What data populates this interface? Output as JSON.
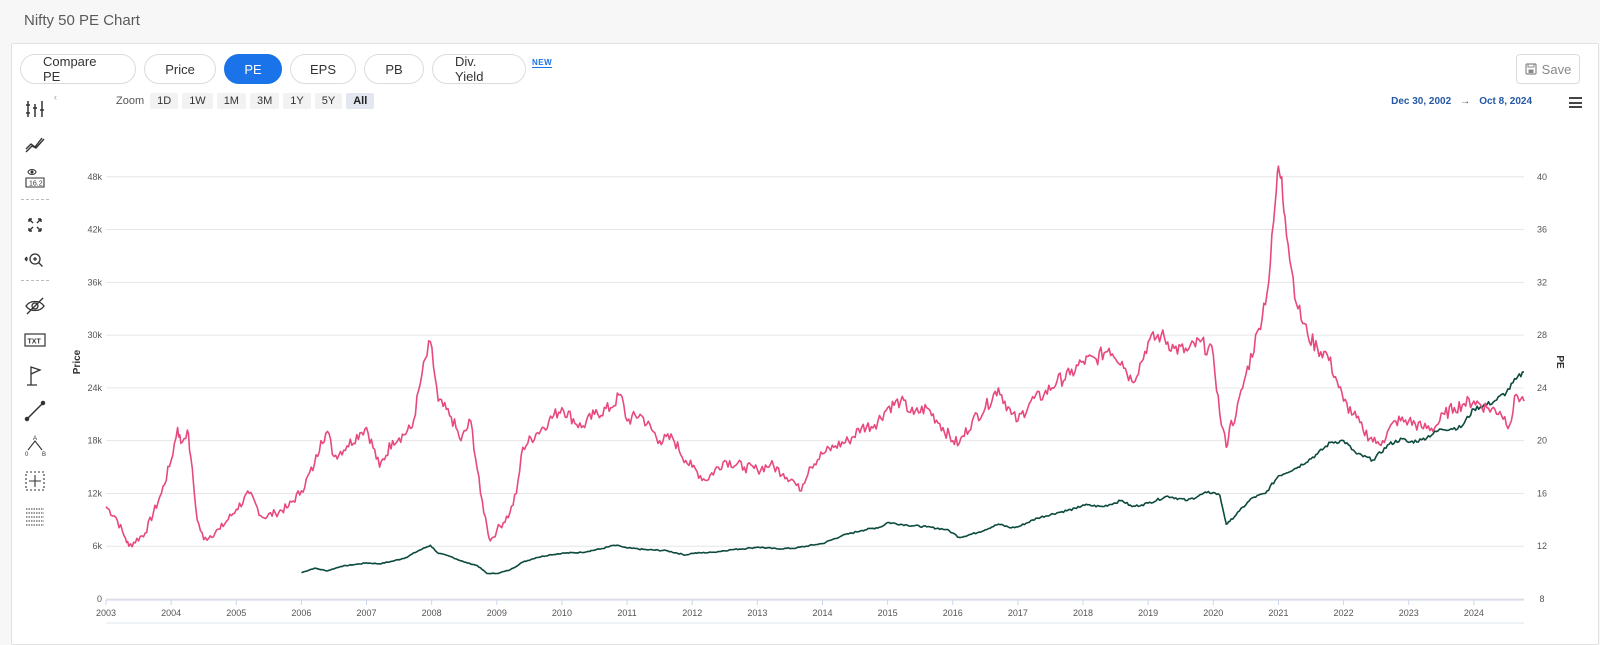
{
  "page": {
    "title": "Nifty 50 PE Chart"
  },
  "tabs": [
    "Compare PE",
    "Price",
    "PE",
    "EPS",
    "PB",
    "Div. Yield"
  ],
  "active_tab": "PE",
  "new_badge": "NEW",
  "save_label": "Save",
  "zoom": {
    "label": "Zoom",
    "options": [
      "1D",
      "1W",
      "1M",
      "3M",
      "1Y",
      "5Y",
      "All"
    ],
    "active": "All"
  },
  "range": {
    "from": "Dec 30, 2002",
    "arrow": "→",
    "to": "Oct 8, 2024"
  },
  "toolbar_icons": [
    "indicators-icon",
    "compare-line-icon",
    "label-value-icon",
    "fullscreen-icon",
    "zoom-pan-icon",
    "hide-icon",
    "text-annotation-icon",
    "flag-icon",
    "line-tool-icon",
    "measure-ab-icon",
    "crosshair-icon",
    "grid-table-icon"
  ],
  "colors": {
    "pe_series": "#e8497d",
    "price_series": "#0c4a3e",
    "accent": "#1a73e8",
    "range_text": "#2458a6"
  },
  "chart_data": {
    "type": "line",
    "title": "",
    "x_ticks": [
      "2003",
      "2004",
      "2005",
      "2006",
      "2007",
      "2008",
      "2009",
      "2010",
      "2011",
      "2012",
      "2013",
      "2014",
      "2015",
      "2016",
      "2017",
      "2018",
      "2019",
      "2020",
      "2021",
      "2022",
      "2023",
      "2024"
    ],
    "xlim": [
      2003.0,
      2024.77
    ],
    "y_left": {
      "label": "Price",
      "ticks": [
        "0",
        "6k",
        "12k",
        "18k",
        "24k",
        "30k",
        "36k",
        "42k",
        "48k"
      ],
      "ylim": [
        0,
        54000
      ]
    },
    "y_right": {
      "label": "PE",
      "ticks": [
        "8",
        "12",
        "16",
        "20",
        "24",
        "28",
        "32",
        "36",
        "40"
      ],
      "ylim": [
        8,
        44
      ]
    },
    "grid": true,
    "series": [
      {
        "axis": "right",
        "x": [
          2003.0,
          2003.15,
          2003.3,
          2003.35,
          2003.6,
          2003.85,
          2004.0,
          2004.1,
          2004.15,
          2004.25,
          2004.3,
          2004.4,
          2004.5,
          2004.75,
          2005.0,
          2005.2,
          2005.4,
          2005.6,
          2005.8,
          2006.0,
          2006.2,
          2006.3,
          2006.4,
          2006.5,
          2006.7,
          2006.9,
          2007.0,
          2007.2,
          2007.4,
          2007.5,
          2007.7,
          2007.85,
          2007.98,
          2008.1,
          2008.3,
          2008.45,
          2008.6,
          2008.75,
          2008.85,
          2008.9,
          2009.0,
          2009.2,
          2009.3,
          2009.4,
          2009.6,
          2009.8,
          2010.0,
          2010.3,
          2010.5,
          2010.75,
          2010.9,
          2011.0,
          2011.2,
          2011.5,
          2011.7,
          2011.9,
          2012.0,
          2012.2,
          2012.5,
          2012.8,
          2013.0,
          2013.2,
          2013.4,
          2013.55,
          2013.65,
          2013.8,
          2014.0,
          2014.2,
          2014.4,
          2014.6,
          2014.8,
          2015.0,
          2015.2,
          2015.4,
          2015.6,
          2015.8,
          2016.0,
          2016.1,
          2016.3,
          2016.5,
          2016.7,
          2016.9,
          2017.0,
          2017.2,
          2017.4,
          2017.6,
          2017.8,
          2018.0,
          2018.2,
          2018.4,
          2018.6,
          2018.75,
          2018.9,
          2019.0,
          2019.2,
          2019.4,
          2019.6,
          2019.8,
          2020.0,
          2020.1,
          2020.2,
          2020.25,
          2020.35,
          2020.5,
          2020.7,
          2020.85,
          2020.95,
          2021.0,
          2021.05,
          2021.1,
          2021.2,
          2021.3,
          2021.45,
          2021.6,
          2021.75,
          2021.9,
          2022.0,
          2022.15,
          2022.3,
          2022.5,
          2022.6,
          2022.8,
          2023.0,
          2023.2,
          2023.4,
          2023.55,
          2023.7,
          2023.85,
          2024.0,
          2024.2,
          2024.4,
          2024.55,
          2024.65,
          2024.77
        ],
        "values": [
          15.0,
          14.2,
          12.6,
          12.0,
          13.0,
          16.0,
          18.5,
          21.0,
          19.8,
          20.8,
          18.8,
          14.0,
          12.5,
          13.3,
          14.8,
          16.0,
          14.2,
          14.5,
          15.0,
          16.2,
          18.2,
          20.0,
          20.7,
          18.8,
          19.6,
          20.6,
          21.0,
          18.0,
          20.0,
          20.2,
          21.0,
          25.0,
          27.5,
          23.0,
          21.8,
          20.0,
          21.5,
          16.0,
          13.5,
          12.4,
          13.2,
          14.5,
          16.0,
          19.5,
          20.5,
          21.5,
          22.5,
          21.0,
          22.0,
          22.5,
          23.5,
          21.5,
          22.0,
          20.0,
          20.2,
          18.5,
          18.0,
          17.0,
          18.5,
          18.0,
          17.8,
          18.2,
          17.5,
          17.0,
          16.2,
          18.0,
          19.0,
          19.6,
          20.0,
          21.0,
          21.2,
          22.5,
          23.0,
          22.0,
          22.5,
          21.3,
          20.0,
          19.8,
          21.5,
          22.5,
          24.0,
          22.0,
          21.5,
          23.0,
          23.5,
          24.5,
          25.0,
          26.0,
          26.2,
          27.0,
          26.0,
          24.5,
          26.0,
          27.5,
          28.0,
          27.0,
          26.8,
          27.5,
          26.5,
          22.0,
          19.5,
          21.0,
          22.0,
          25.0,
          28.5,
          32.0,
          38.0,
          40.8,
          40.0,
          37.0,
          33.0,
          30.0,
          28.0,
          27.0,
          26.5,
          24.5,
          23.0,
          22.0,
          20.8,
          19.8,
          20.0,
          21.5,
          21.5,
          21.0,
          21.0,
          22.0,
          22.5,
          22.8,
          23.0,
          22.5,
          22.2,
          21.2,
          23.5,
          23.0
        ]
      },
      {
        "axis": "left",
        "x": [
          2006.0,
          2006.2,
          2006.4,
          2006.6,
          2006.8,
          2007.0,
          2007.2,
          2007.4,
          2007.6,
          2007.8,
          2007.98,
          2008.1,
          2008.3,
          2008.5,
          2008.7,
          2008.85,
          2009.0,
          2009.2,
          2009.4,
          2009.6,
          2009.8,
          2010.0,
          2010.3,
          2010.6,
          2010.8,
          2010.9,
          2011.0,
          2011.3,
          2011.6,
          2011.9,
          2012.0,
          2012.3,
          2012.6,
          2012.9,
          2013.0,
          2013.3,
          2013.6,
          2013.9,
          2014.0,
          2014.3,
          2014.6,
          2014.9,
          2015.0,
          2015.3,
          2015.6,
          2015.9,
          2016.0,
          2016.1,
          2016.4,
          2016.7,
          2016.9,
          2017.0,
          2017.3,
          2017.6,
          2017.9,
          2018.0,
          2018.3,
          2018.6,
          2018.75,
          2018.9,
          2019.0,
          2019.3,
          2019.6,
          2019.9,
          2020.0,
          2020.1,
          2020.2,
          2020.25,
          2020.4,
          2020.6,
          2020.8,
          2021.0,
          2021.3,
          2021.6,
          2021.8,
          2022.0,
          2022.2,
          2022.45,
          2022.7,
          2022.9,
          2023.0,
          2023.2,
          2023.5,
          2023.8,
          2024.0,
          2024.3,
          2024.5,
          2024.65,
          2024.77
        ],
        "values": [
          3000,
          3500,
          3200,
          3700,
          3900,
          4100,
          4000,
          4300,
          4700,
          5500,
          6100,
          5200,
          4800,
          4200,
          3800,
          2900,
          2900,
          3300,
          4200,
          4700,
          5000,
          5200,
          5300,
          5700,
          6100,
          6000,
          5800,
          5600,
          5500,
          5000,
          5200,
          5300,
          5600,
          5800,
          5900,
          5700,
          5800,
          6200,
          6300,
          7200,
          7800,
          8200,
          8700,
          8400,
          8200,
          7900,
          7500,
          7000,
          7600,
          8500,
          8100,
          8200,
          9200,
          9800,
          10300,
          10700,
          10500,
          11200,
          10500,
          10700,
          10900,
          11700,
          11200,
          12100,
          12100,
          11800,
          8500,
          8800,
          10000,
          11500,
          12000,
          14000,
          15000,
          16500,
          17800,
          18000,
          16500,
          15800,
          17600,
          18200,
          17800,
          18100,
          19300,
          19500,
          21600,
          22400,
          23500,
          25000,
          25800
        ]
      }
    ]
  }
}
